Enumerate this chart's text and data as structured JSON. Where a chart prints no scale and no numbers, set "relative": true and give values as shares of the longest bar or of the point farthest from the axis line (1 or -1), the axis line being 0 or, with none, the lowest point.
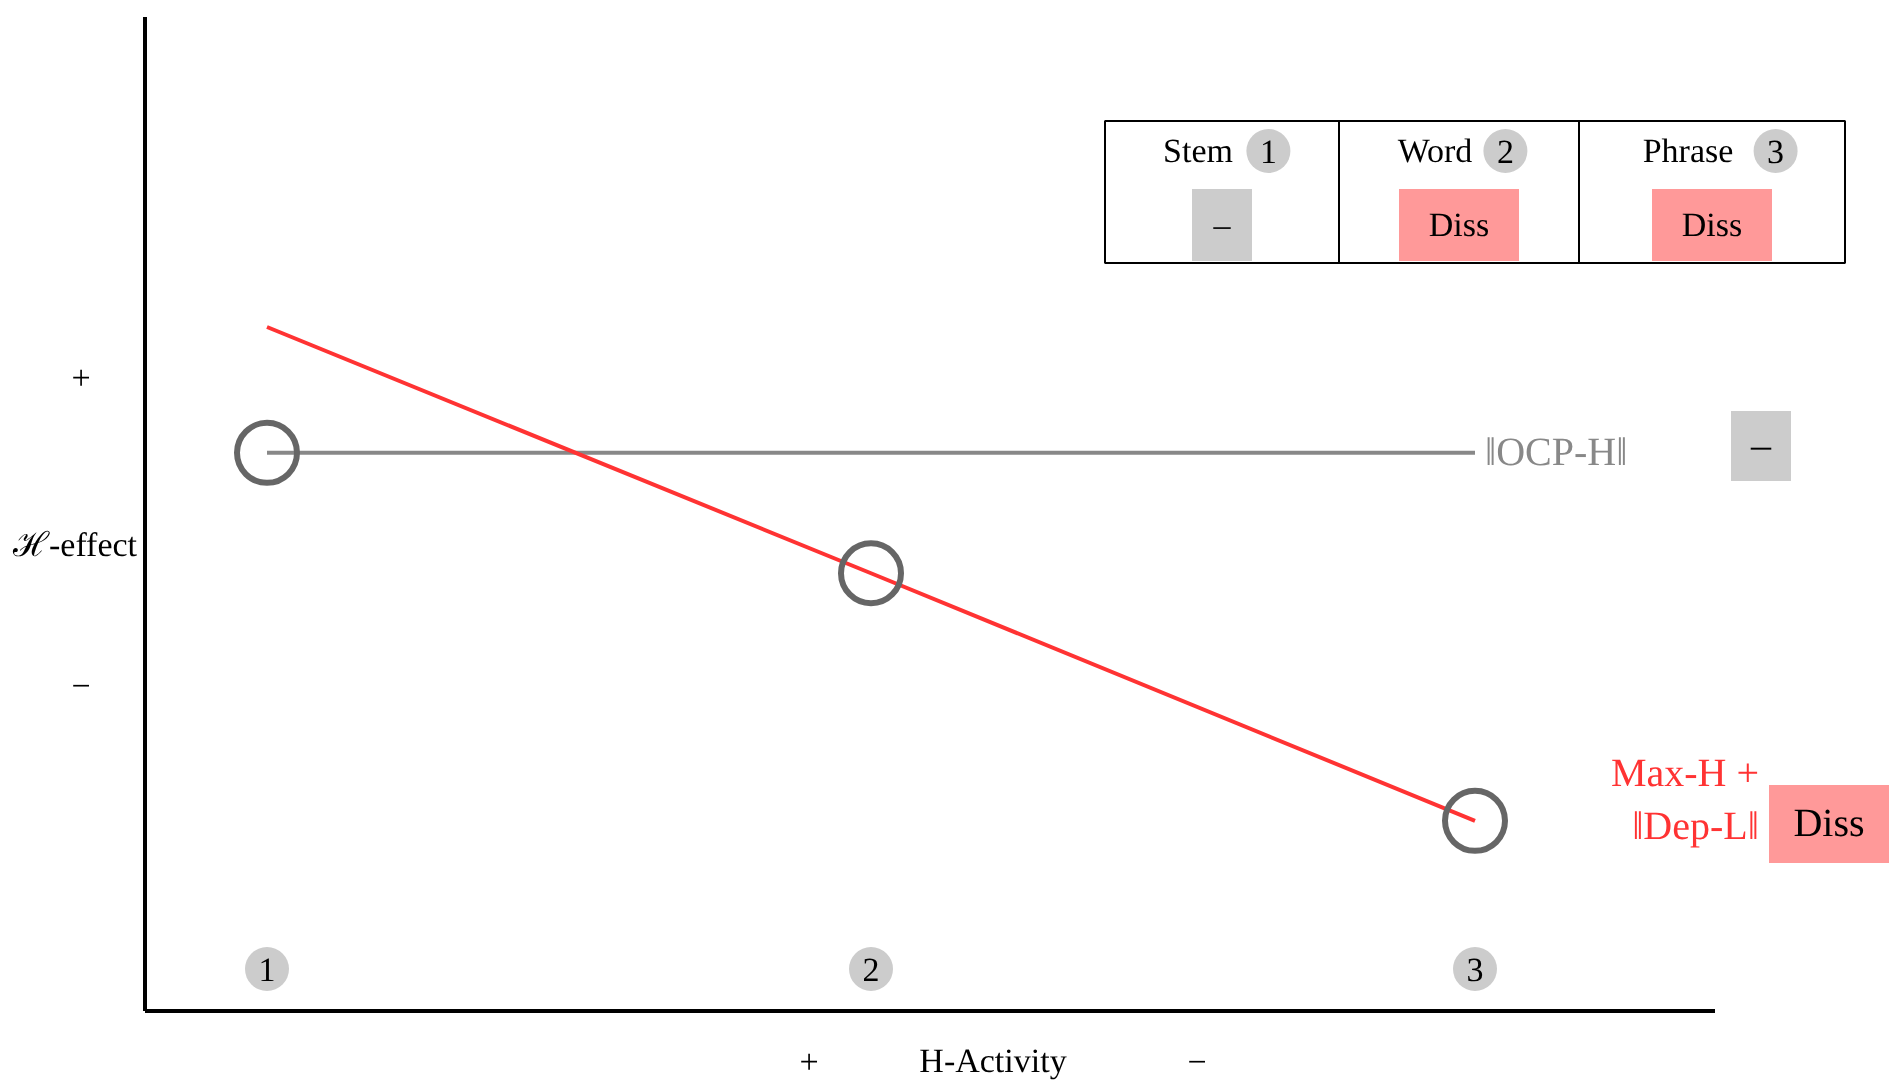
{
  "chart_data": {
    "type": "line",
    "relative": true,
    "categories": [
      "1",
      "2",
      "3"
    ],
    "xlabel": "H-Activity",
    "ylabel": "ℋ-effect",
    "series": [
      {
        "name": "‖OCP-H‖",
        "color": "#888888",
        "values": [
          0.816,
          0.816,
          0.816
        ],
        "marker": "none"
      },
      {
        "name": "Max-H +\n‖Dep-L‖",
        "color": "#ff3333",
        "values": [
          1,
          0.64,
          0.278
        ],
        "marker": "none"
      },
      {
        "type": "scatter",
        "color": "#666666",
        "values": [
          0.816,
          0.64,
          0.278
        ],
        "marker": "circle"
      }
    ],
    "annotations": [
      "+",
      "−",
      "+",
      "−",
      "Stem",
      "Word",
      "Phrase",
      "–",
      "Diss",
      "Diss",
      "–",
      "Diss"
    ]
  }
}
